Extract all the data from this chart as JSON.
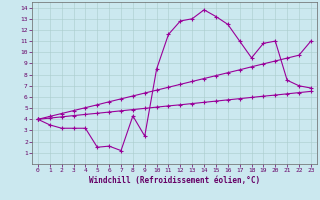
{
  "xlabel": "Windchill (Refroidissement éolien,°C)",
  "bg_color": "#cbe8ef",
  "grid_color": "#aacccc",
  "line_color": "#990099",
  "xlim": [
    -0.5,
    23.5
  ],
  "ylim": [
    0,
    14.5
  ],
  "xticks": [
    0,
    1,
    2,
    3,
    4,
    5,
    6,
    7,
    8,
    9,
    10,
    11,
    12,
    13,
    14,
    15,
    16,
    17,
    18,
    19,
    20,
    21,
    22,
    23
  ],
  "yticks": [
    1,
    2,
    3,
    4,
    5,
    6,
    7,
    8,
    9,
    10,
    11,
    12,
    13,
    14
  ],
  "curve1_x": [
    0,
    1,
    2,
    3,
    4,
    5,
    6,
    7,
    8,
    9,
    10,
    11,
    12,
    13,
    14,
    15,
    16,
    17,
    18,
    19,
    20,
    21,
    22,
    23
  ],
  "curve1_y": [
    4.0,
    3.5,
    3.2,
    3.2,
    3.2,
    1.5,
    1.6,
    1.2,
    4.3,
    2.5,
    8.5,
    11.6,
    12.8,
    13.0,
    13.8,
    13.2,
    12.5,
    11.0,
    9.5,
    10.8,
    11.0,
    7.5,
    7.0,
    6.8
  ],
  "curve2_x": [
    0,
    1,
    2,
    3,
    4,
    5,
    6,
    7,
    8,
    9,
    10,
    11,
    12,
    13,
    14,
    15,
    16,
    17,
    18,
    19,
    20,
    21,
    22,
    23
  ],
  "curve2_y": [
    4.0,
    4.26,
    4.52,
    4.78,
    5.04,
    5.3,
    5.57,
    5.83,
    6.09,
    6.35,
    6.61,
    6.87,
    7.13,
    7.39,
    7.65,
    7.91,
    8.17,
    8.43,
    8.7,
    8.96,
    9.22,
    9.48,
    9.74,
    11.0
  ],
  "curve3_x": [
    0,
    1,
    2,
    3,
    4,
    5,
    6,
    7,
    8,
    9,
    10,
    11,
    12,
    13,
    14,
    15,
    16,
    17,
    18,
    19,
    20,
    21,
    22,
    23
  ],
  "curve3_y": [
    4.0,
    4.11,
    4.22,
    4.33,
    4.44,
    4.54,
    4.65,
    4.76,
    4.87,
    4.98,
    5.09,
    5.2,
    5.3,
    5.41,
    5.52,
    5.63,
    5.74,
    5.85,
    5.96,
    6.07,
    6.17,
    6.28,
    6.39,
    6.5
  ]
}
